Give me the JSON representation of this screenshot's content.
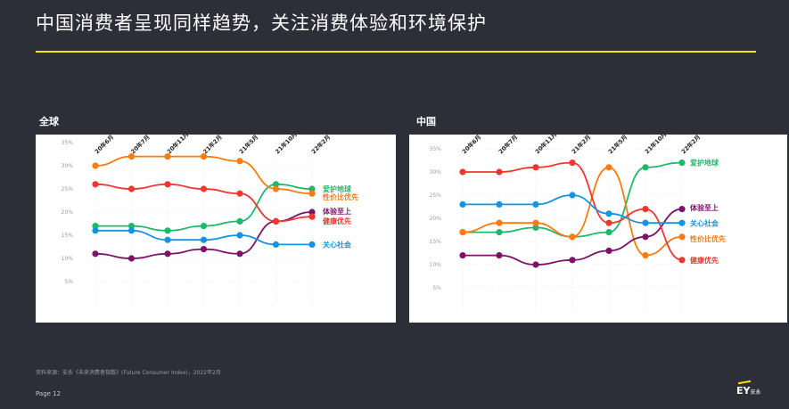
{
  "header": {
    "title": "中国消费者呈现同样趋势，关注消费体验和环境保护"
  },
  "footer": {
    "source": "资料来源：安永《未来消费者指数》(Future Consumer Index)，2022年2月",
    "page": "Page 12",
    "logo": "EY",
    "logo_sub": "安永"
  },
  "colors": {
    "爱护地球": "#1fb86a",
    "性价比优先": "#ff7a0f",
    "体验至上": "#7b1466",
    "健康优先": "#f0362e",
    "关心社会": "#1593e0"
  },
  "chart_data": [
    {
      "type": "line",
      "panel_title": "全球",
      "categories": [
        "20年6月",
        "20年7月",
        "20年11月",
        "21年2月",
        "21年5月",
        "21年10月",
        "22年2月"
      ],
      "ylim": [
        0,
        37
      ],
      "yticks": [
        "5%",
        "10%",
        "15%",
        "20%",
        "25%",
        "30%",
        "35%"
      ],
      "ytick_values": [
        5,
        10,
        15,
        20,
        25,
        30,
        35
      ],
      "series": [
        {
          "name": "爱护地球",
          "values": [
            17,
            17,
            16,
            17,
            18,
            26,
            25
          ]
        },
        {
          "name": "性价比优先",
          "values": [
            30,
            32,
            32,
            32,
            31,
            25,
            24
          ]
        },
        {
          "name": "体验至上",
          "values": [
            11,
            10,
            11,
            12,
            11,
            18,
            20
          ]
        },
        {
          "name": "健康优先",
          "values": [
            26,
            25,
            26,
            25,
            24,
            18,
            19
          ]
        },
        {
          "name": "关心社会",
          "values": [
            16,
            16,
            14,
            14,
            15,
            13,
            13
          ]
        }
      ],
      "labels": [
        {
          "name": "爱护地球",
          "anchor": 25
        },
        {
          "name": "性价比优先",
          "anchor": 23.3
        },
        {
          "name": "体验至上",
          "anchor": 20.2
        },
        {
          "name": "健康优先",
          "anchor": 18.1
        },
        {
          "name": "关心社会",
          "anchor": 13
        }
      ]
    },
    {
      "type": "line",
      "panel_title": "中国",
      "categories": [
        "20年6月",
        "20年7月",
        "20年11月",
        "21年2月",
        "21年5月",
        "21年10月",
        "22年2月"
      ],
      "ylim": [
        0,
        37
      ],
      "yticks": [
        "5%",
        "10%",
        "15%",
        "20%",
        "25%",
        "30%",
        "35%"
      ],
      "ytick_values": [
        5,
        10,
        15,
        20,
        25,
        30,
        35
      ],
      "series": [
        {
          "name": "爱护地球",
          "values": [
            17,
            17,
            18,
            16,
            17,
            31,
            32
          ]
        },
        {
          "name": "性价比优先",
          "values": [
            17,
            19,
            19,
            16,
            31,
            12,
            16
          ]
        },
        {
          "name": "体验至上",
          "values": [
            12,
            12,
            10,
            11,
            13,
            16,
            22
          ]
        },
        {
          "name": "健康优先",
          "values": [
            30,
            30,
            31,
            32,
            19,
            22,
            11
          ]
        },
        {
          "name": "关心社会",
          "values": [
            23,
            23,
            23,
            25,
            21,
            19,
            19
          ]
        }
      ],
      "labels": [
        {
          "name": "爱护地球",
          "anchor": 32
        },
        {
          "name": "体验至上",
          "anchor": 22.3
        },
        {
          "name": "关心社会",
          "anchor": 18.9
        },
        {
          "name": "性价比优先",
          "anchor": 15.6
        },
        {
          "name": "健康优先",
          "anchor": 11
        }
      ]
    }
  ]
}
